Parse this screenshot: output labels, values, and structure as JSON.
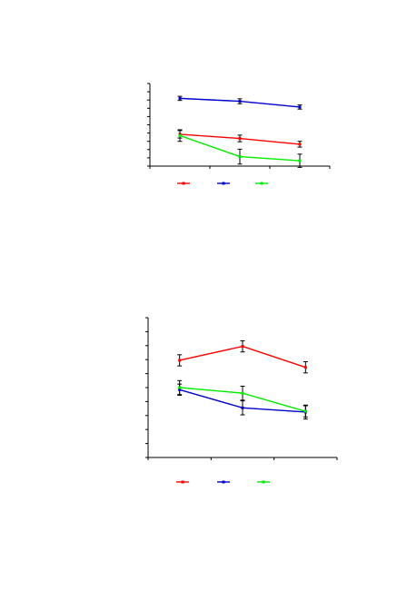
{
  "chart_data": [
    {
      "type": "line",
      "x": [
        1,
        2,
        3
      ],
      "ylim": [
        0,
        1
      ],
      "xlim": [
        0.5,
        3.5
      ],
      "grid": false,
      "legend_placement": "bottom",
      "y_tick_count": 11,
      "x_tick_count": 4,
      "series": [
        {
          "color": "#ff0000",
          "values": [
            0.385,
            0.335,
            0.265
          ],
          "errors": [
            0.045,
            0.04,
            0.035
          ]
        },
        {
          "color": "#0000cc",
          "values": [
            0.82,
            0.785,
            0.715
          ],
          "errors": [
            0.025,
            0.03,
            0.025
          ]
        },
        {
          "color": "#00ee00",
          "values": [
            0.37,
            0.115,
            0.065
          ],
          "errors": [
            0.07,
            0.09,
            0.08
          ]
        }
      ]
    },
    {
      "type": "line",
      "x": [
        1,
        2,
        3
      ],
      "ylim": [
        0,
        1
      ],
      "xlim": [
        0.5,
        3.5
      ],
      "grid": false,
      "legend_placement": "bottom",
      "y_tick_count": 11,
      "x_tick_count": 4,
      "series": [
        {
          "color": "#ff0000",
          "values": [
            0.695,
            0.795,
            0.645
          ],
          "errors": [
            0.04,
            0.04,
            0.04
          ]
        },
        {
          "color": "#0000cc",
          "values": [
            0.485,
            0.355,
            0.325
          ],
          "errors": [
            0.04,
            0.05,
            0.05
          ]
        },
        {
          "color": "#00ee00",
          "values": [
            0.5,
            0.46,
            0.33
          ],
          "errors": [
            0.05,
            0.05,
            0.04
          ]
        }
      ]
    }
  ]
}
